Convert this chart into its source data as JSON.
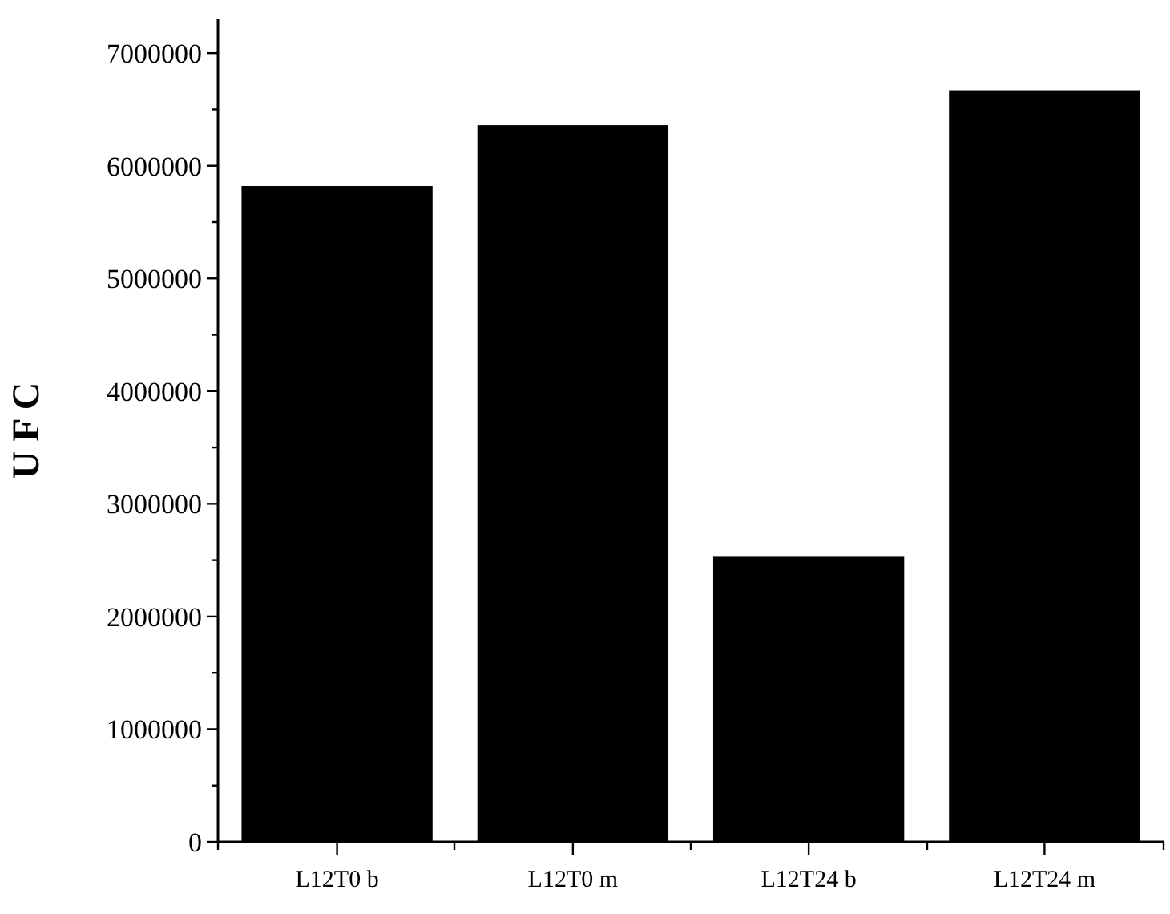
{
  "chart_data": {
    "type": "bar",
    "ylabel": "U F C",
    "categories": [
      "L12T0 b",
      "L12T0 m",
      "L12T24 b",
      "L12T24 m"
    ],
    "values": [
      5820000,
      6360000,
      2530000,
      6670000
    ],
    "color": "#000000",
    "ylim": [
      0,
      7300000
    ],
    "yticks": [
      0,
      {
        "value": 500000,
        "label": null
      },
      1000000,
      {
        "value": 1500000,
        "label": null
      },
      2000000,
      {
        "value": 2500000,
        "label": null
      },
      3000000,
      {
        "value": 3500000,
        "label": null
      },
      4000000,
      {
        "value": 4500000,
        "label": null
      },
      5000000,
      {
        "value": 5500000,
        "label": null
      },
      6000000,
      {
        "value": 6500000,
        "label": null
      },
      7000000
    ],
    "grid": false
  }
}
